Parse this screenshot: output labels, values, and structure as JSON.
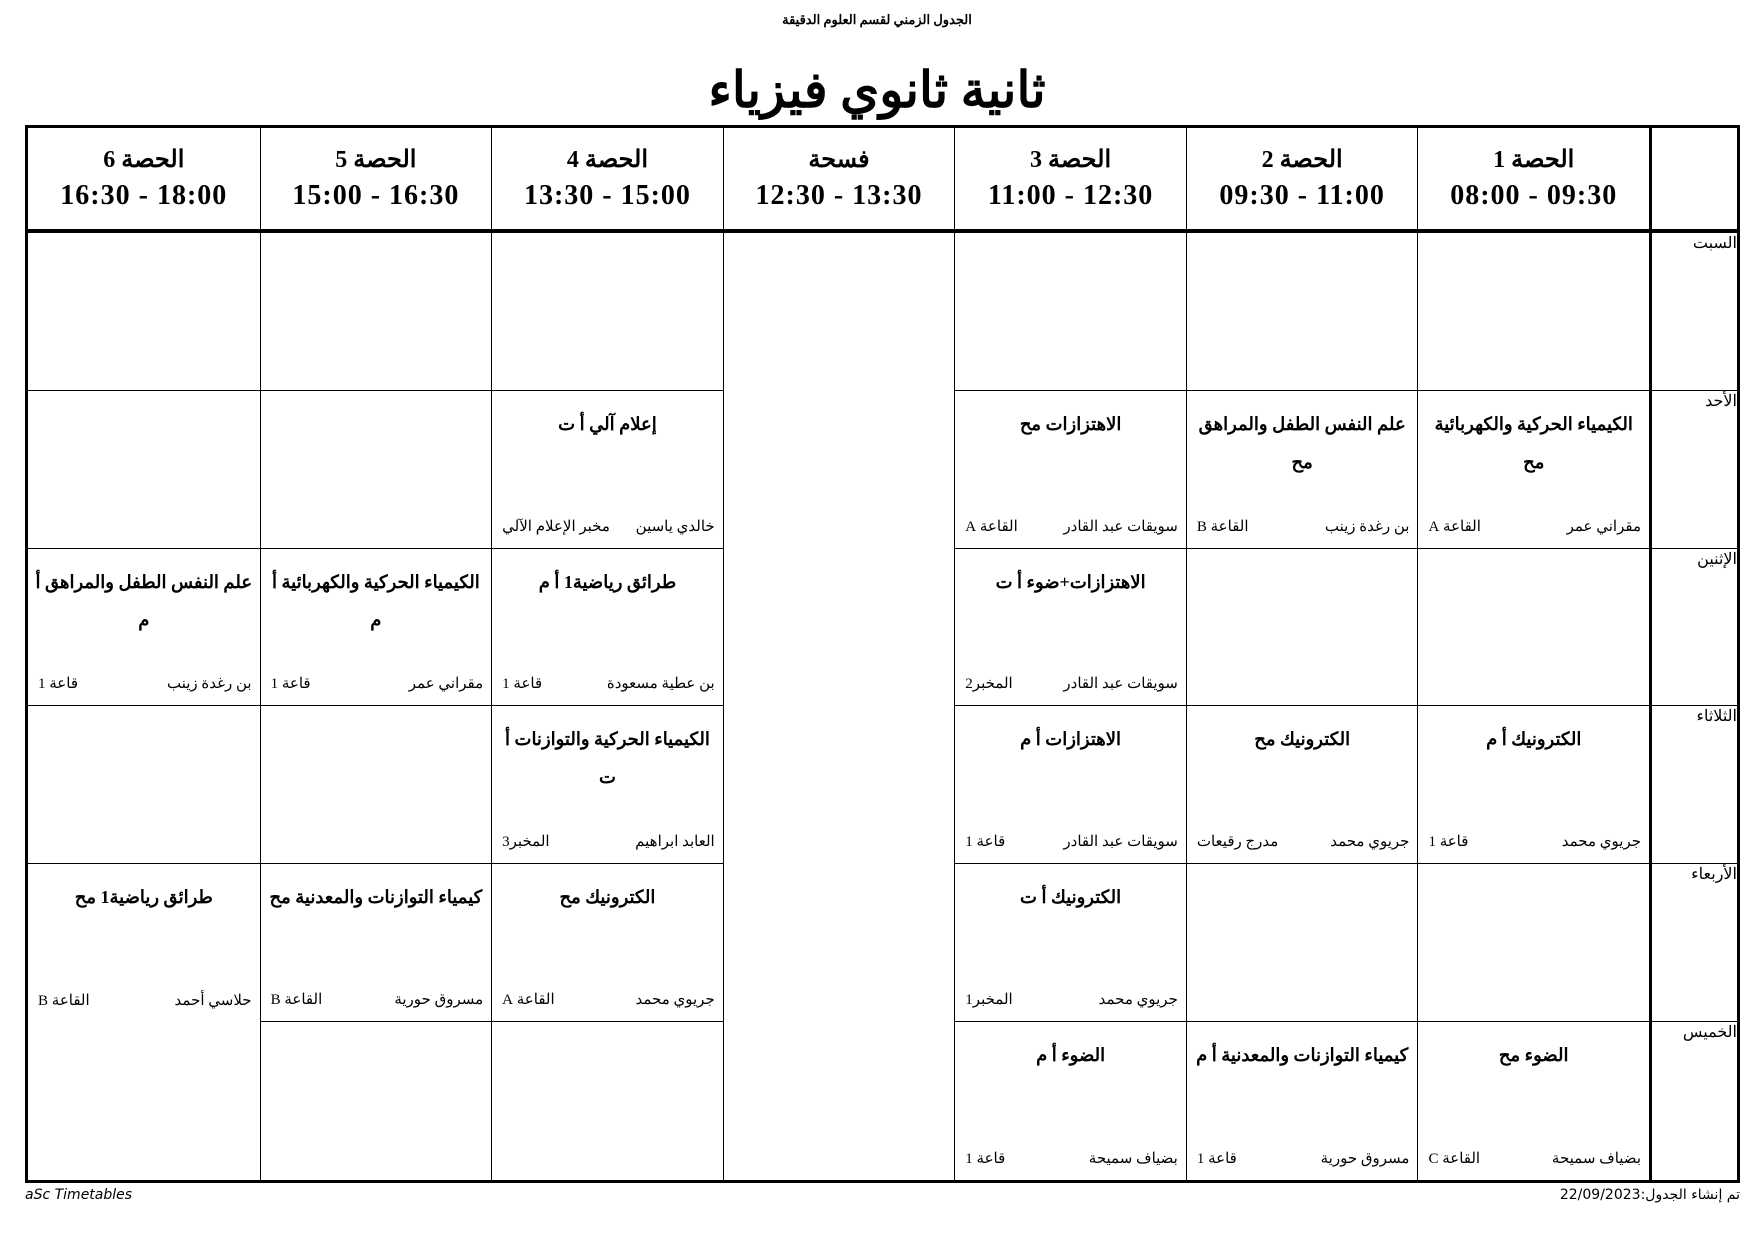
{
  "header_note": "الجدول الزمني لقسم العلوم الدقيقة",
  "title": "ثانية ثانوي فيزياء",
  "columns": [
    {
      "label": "الحصة 1",
      "time": "08:00 - 09:30"
    },
    {
      "label": "الحصة 2",
      "time": "09:30 - 11:00"
    },
    {
      "label": "الحصة 3",
      "time": "11:00 - 12:30"
    },
    {
      "label": "فسحة",
      "time": "12:30 - 13:30"
    },
    {
      "label": "الحصة 4",
      "time": "13:30 - 15:00"
    },
    {
      "label": "الحصة 5",
      "time": "15:00 - 16:30"
    },
    {
      "label": "الحصة 6",
      "time": "16:30 - 18:00"
    }
  ],
  "days": [
    {
      "name": "السبت",
      "cells": [
        null,
        null,
        null,
        null,
        null,
        null
      ]
    },
    {
      "name": "الأحد",
      "cells": [
        {
          "subject": "الكيمياء الحركية والكهربائية مح",
          "teacher": "مقراني عمر",
          "room": "القاعة A"
        },
        {
          "subject": "علم النفس الطفل والمراهق مح",
          "teacher": "بن رغدة زينب",
          "room": "القاعة B"
        },
        {
          "subject": "الاهتزازات مح",
          "teacher": "سويقات عبد القادر",
          "room": "القاعة A"
        },
        {
          "subject": "إعلام آلي أ ت",
          "teacher": "خالدي ياسين",
          "room": "مخبر الإعلام الآلي"
        },
        null,
        null
      ]
    },
    {
      "name": "الإثنين",
      "cells": [
        null,
        null,
        {
          "subject": "الاهتزازات+ضوء أ ت",
          "teacher": "سويقات عبد القادر",
          "room": "المخبر2"
        },
        {
          "subject": "طرائق رياضية1 أ م",
          "teacher": "بن عطية مسعودة",
          "room": "قاعة 1"
        },
        {
          "subject": "الكيمياء الحركية والكهربائية أ م",
          "teacher": "مقراني عمر",
          "room": "قاعة 1"
        },
        {
          "subject": "علم النفس الطفل والمراهق أ م",
          "teacher": "بن رغدة زينب",
          "room": "قاعة 1"
        }
      ]
    },
    {
      "name": "الثلاثاء",
      "cells": [
        {
          "subject": "الكترونيك أ م",
          "teacher": "جريوي محمد",
          "room": "قاعة 1"
        },
        {
          "subject": "الكترونيك مح",
          "teacher": "جريوي محمد",
          "room": "مدرج رقيعات"
        },
        {
          "subject": "الاهتزازات أ م",
          "teacher": "سويقات عبد القادر",
          "room": "قاعة 1"
        },
        {
          "subject": "الكيمياء الحركية والتوازنات أ ت",
          "teacher": "العابد ابراهيم",
          "room": "المخبر3"
        },
        null,
        null
      ]
    },
    {
      "name": "الأربعاء",
      "cells": [
        null,
        null,
        {
          "subject": "الكترونيك أ ت",
          "teacher": "جريوي محمد",
          "room": "المخبر1"
        },
        {
          "subject": "الكترونيك مح",
          "teacher": "جريوي محمد",
          "room": "القاعة A"
        },
        {
          "subject": "كيمياء التوازنات والمعدنية مح",
          "teacher": "مسروق حورية",
          "room": "القاعة B"
        },
        {
          "subject": "طرائق رياضية1 مح",
          "teacher": "حلاسي أحمد",
          "room": "القاعة B"
        }
      ]
    },
    {
      "name": "الخميس",
      "cells": [
        {
          "subject": "الضوء مح",
          "teacher": "بضياف سميحة",
          "room": "القاعة C"
        },
        {
          "subject": "كيمياء التوازنات والمعدنية  أ م",
          "teacher": "مسروق حورية",
          "room": "قاعة 1"
        },
        {
          "subject": "الضوء أ م",
          "teacher": "بضياف سميحة",
          "room": "قاعة 1"
        },
        null,
        null,
        null
      ]
    }
  ],
  "footer": {
    "left": "aSc Timetables",
    "right": "تم إنشاء الجدول:22/09/2023"
  }
}
